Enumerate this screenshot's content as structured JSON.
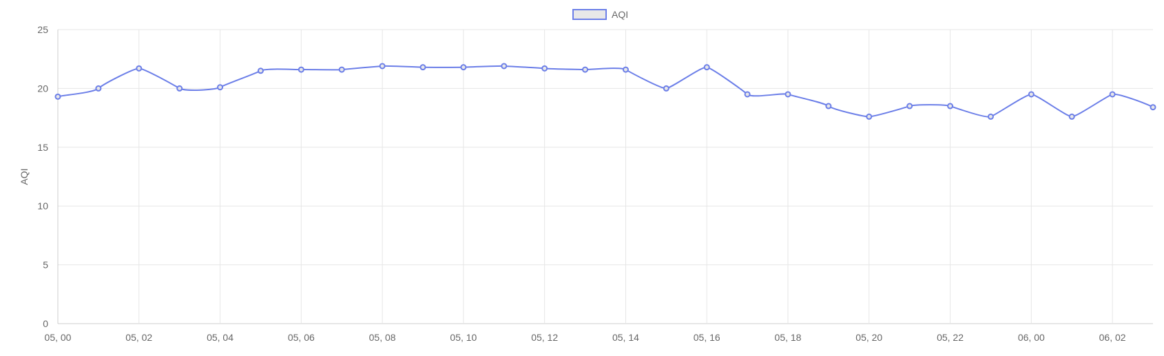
{
  "chart_data": {
    "type": "line",
    "title": "",
    "xlabel": "",
    "ylabel": "AQI",
    "ylim": [
      0,
      25
    ],
    "y_ticks": [
      "0",
      "5",
      "10",
      "15",
      "20",
      "25"
    ],
    "grid": true,
    "legend_position": "top-center",
    "colors": {
      "line": "#6b7ee8",
      "legend_fill": "#e8e8e8",
      "grid": "#e6e6e6",
      "axis": "#cccccc",
      "text": "#666666"
    },
    "x": [
      "05, 00",
      "05, 01",
      "05, 02",
      "05, 03",
      "05, 04",
      "05, 05",
      "05, 06",
      "05, 07",
      "05, 08",
      "05, 09",
      "05, 10",
      "05, 11",
      "05, 12",
      "05, 13",
      "05, 14",
      "05, 15",
      "05, 16",
      "05, 17",
      "05, 18",
      "05, 19",
      "05, 20",
      "05, 21",
      "05, 22",
      "05, 23",
      "06, 00",
      "06, 01",
      "06, 02",
      "06, 03"
    ],
    "x_tick_labels": [
      "05, 00",
      "05, 02",
      "05, 04",
      "05, 06",
      "05, 08",
      "05, 10",
      "05, 12",
      "05, 14",
      "05, 16",
      "05, 18",
      "05, 20",
      "05, 22",
      "06, 00",
      "06, 02"
    ],
    "series": [
      {
        "name": "AQI",
        "values": [
          19.3,
          20.0,
          21.7,
          20.0,
          20.1,
          21.5,
          21.6,
          21.6,
          21.9,
          21.8,
          21.8,
          21.9,
          21.7,
          21.6,
          21.6,
          20.0,
          21.8,
          19.5,
          19.5,
          18.5,
          17.6,
          18.5,
          18.5,
          17.6,
          19.5,
          17.6,
          19.5,
          18.4
        ]
      }
    ]
  }
}
